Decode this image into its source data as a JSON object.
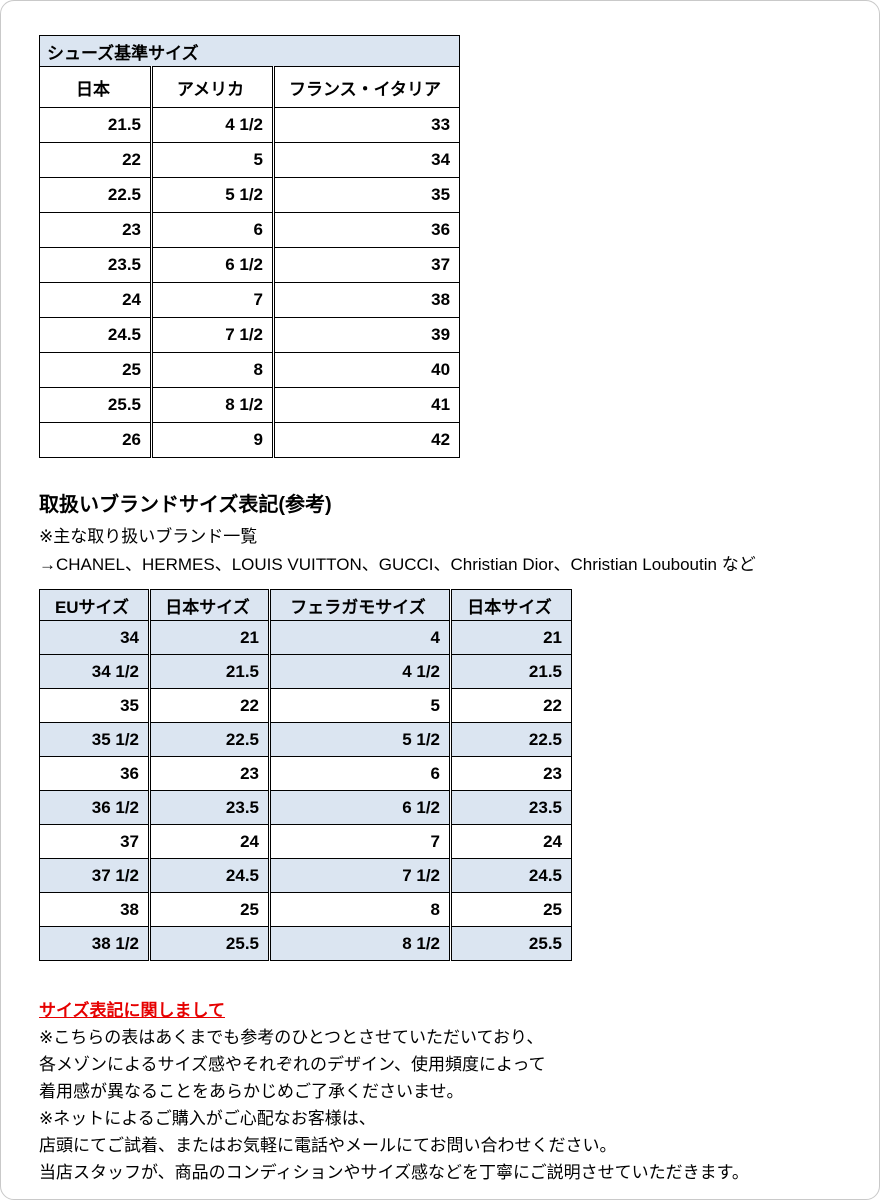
{
  "colors": {
    "header_blue": "#dbe5f1",
    "row_blue": "#dbe5f1",
    "notice_red": "#e60000"
  },
  "table1": {
    "title": "シューズ基準サイズ",
    "headers": [
      "日本",
      "アメリカ",
      "フランス・イタリア"
    ],
    "rows": [
      [
        "21.5",
        "4 1/2",
        "33"
      ],
      [
        "22",
        "5",
        "34"
      ],
      [
        "22.5",
        "5 1/2",
        "35"
      ],
      [
        "23",
        "6",
        "36"
      ],
      [
        "23.5",
        "6 1/2",
        "37"
      ],
      [
        "24",
        "7",
        "38"
      ],
      [
        "24.5",
        "7 1/2",
        "39"
      ],
      [
        "25",
        "8",
        "40"
      ],
      [
        "25.5",
        "8 1/2",
        "41"
      ],
      [
        "26",
        "9",
        "42"
      ]
    ]
  },
  "brand_section": {
    "heading": "取扱いブランドサイズ表記(参考)",
    "note": "※主な取り扱いブランド一覧",
    "brands": "→CHANEL、HERMES、LOUIS VUITTON、GUCCI、Christian Dior、Christian Louboutin など"
  },
  "table2": {
    "headers": [
      "EUサイズ",
      "日本サイズ",
      "フェラガモサイズ",
      "日本サイズ"
    ],
    "rows": [
      {
        "cells": [
          "34",
          "21",
          "4",
          "21"
        ],
        "shaded": true
      },
      {
        "cells": [
          "34 1/2",
          "21.5",
          "4 1/2",
          "21.5"
        ],
        "shaded": true
      },
      {
        "cells": [
          "35",
          "22",
          "5",
          "22"
        ],
        "shaded": false
      },
      {
        "cells": [
          "35 1/2",
          "22.5",
          "5 1/2",
          "22.5"
        ],
        "shaded": true
      },
      {
        "cells": [
          "36",
          "23",
          "6",
          "23"
        ],
        "shaded": false
      },
      {
        "cells": [
          "36 1/2",
          "23.5",
          "6 1/2",
          "23.5"
        ],
        "shaded": true
      },
      {
        "cells": [
          "37",
          "24",
          "7",
          "24"
        ],
        "shaded": false
      },
      {
        "cells": [
          "37 1/2",
          "24.5",
          "7 1/2",
          "24.5"
        ],
        "shaded": true
      },
      {
        "cells": [
          "38",
          "25",
          "8",
          "25"
        ],
        "shaded": false
      },
      {
        "cells": [
          "38 1/2",
          "25.5",
          "8 1/2",
          "25.5"
        ],
        "shaded": true
      }
    ]
  },
  "notice": {
    "heading": "サイズ表記に関しまして",
    "lines": [
      "※こちらの表はあくまでも参考のひとつとさせていただいており、",
      "各メゾンによるサイズ感やそれぞれのデザイン、使用頻度によって",
      "着用感が異なることをあらかじめご了承くださいませ。",
      "※ネットによるご購入がご心配なお客様は、",
      "店頭にてご試着、またはお気軽に電話やメールにてお問い合わせください。",
      "当店スタッフが、商品のコンディションやサイズ感などを丁寧にご説明させていただきます。"
    ]
  }
}
